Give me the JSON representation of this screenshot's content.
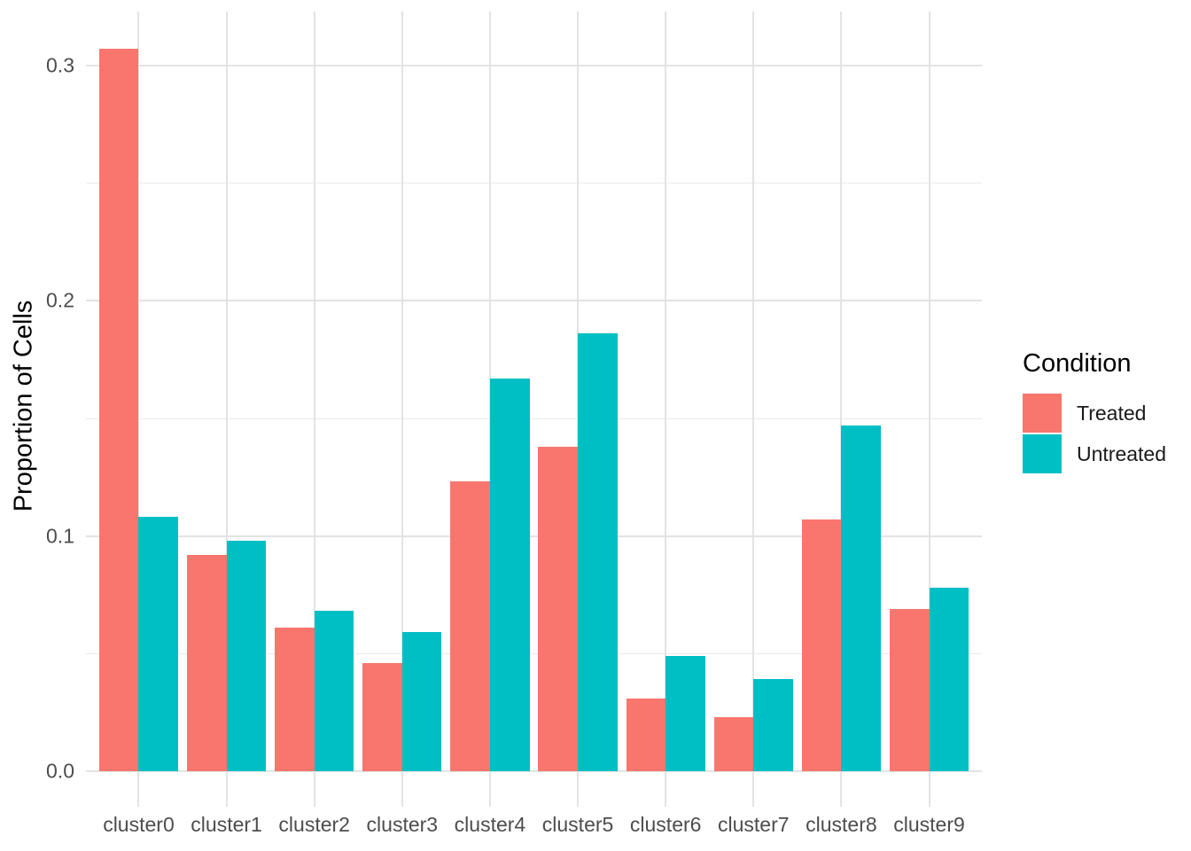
{
  "chart_data": {
    "type": "bar",
    "title": "",
    "categories": [
      "cluster0",
      "cluster1",
      "cluster2",
      "cluster3",
      "cluster4",
      "cluster5",
      "cluster6",
      "cluster7",
      "cluster8",
      "cluster9"
    ],
    "series": [
      {
        "name": "Treated",
        "color": "#F8766D",
        "values": [
          0.307,
          0.092,
          0.061,
          0.046,
          0.123,
          0.138,
          0.031,
          0.023,
          0.107,
          0.069
        ]
      },
      {
        "name": "Untreated",
        "color": "#00BFC4",
        "values": [
          0.108,
          0.098,
          0.068,
          0.059,
          0.167,
          0.186,
          0.049,
          0.039,
          0.147,
          0.078
        ]
      }
    ],
    "xlabel": "",
    "ylabel": "Proportion of Cells",
    "ylim": [
      0,
      0.322
    ],
    "yticks": [
      0,
      0.1,
      0.2,
      0.3
    ],
    "ytick_labels": [
      "0.0",
      "0.1",
      "0.2",
      "0.3"
    ],
    "y_minor_ticks": [
      0.05,
      0.15,
      0.25
    ],
    "grid": true,
    "legend": {
      "title": "Condition",
      "position": "right",
      "entries": [
        {
          "label": "Treated",
          "color": "#F8766D"
        },
        {
          "label": "Untreated",
          "color": "#00BFC4"
        }
      ]
    }
  },
  "colors": {
    "background": "#FFFFFF",
    "grid_major": "#E3E3E3",
    "grid_minor": "#EAEAEA",
    "tick_text": "#4D4D4D",
    "axis_title_text": "#000000",
    "legend_text": "#1A1A1A"
  }
}
